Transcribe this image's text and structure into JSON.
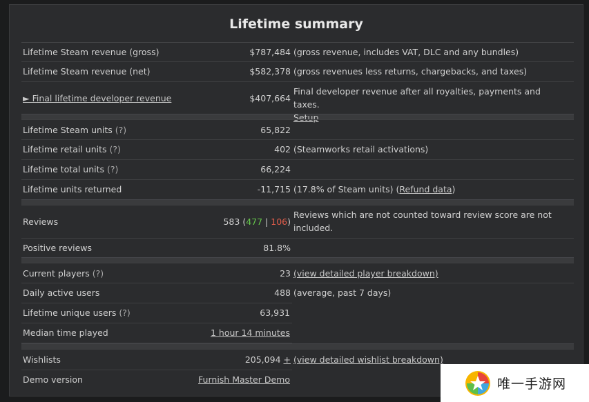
{
  "title": "Lifetime summary",
  "revenue": {
    "gross": {
      "label": "Lifetime Steam revenue (gross)",
      "value": "$787,484",
      "note": "(gross revenue, includes VAT, DLC and any bundles)"
    },
    "net": {
      "label": "Lifetime Steam revenue (net)",
      "value": "$582,378",
      "note": "(gross revenues less returns, chargebacks, and taxes)"
    },
    "developer": {
      "label": "► Final lifetime developer revenue",
      "value": "$407,664",
      "note": "Final developer revenue after all royalties, payments and taxes.",
      "setup": "Setup"
    }
  },
  "units": {
    "steam": {
      "label": "Lifetime Steam units",
      "q": "(?)",
      "value": "65,822"
    },
    "retail": {
      "label": "Lifetime retail units",
      "q": "(?)",
      "value": "402",
      "note": "(Steamworks retail activations)"
    },
    "total": {
      "label": "Lifetime total units",
      "q": "(?)",
      "value": "66,224"
    },
    "returned": {
      "label": "Lifetime units returned",
      "value": "-11,715",
      "note_prefix": "(17.8% of Steam units) (",
      "note_link": "Refund data",
      "note_suffix": ")"
    }
  },
  "reviews": {
    "label": "Reviews",
    "total": "583",
    "positive": "477",
    "negative": "106",
    "open": "(",
    "bar": "|",
    "close": ")",
    "note": "Reviews which are not counted toward review score are not included.",
    "positive_label": "Positive reviews",
    "positive_pct": "81.8%"
  },
  "players": {
    "current": {
      "label": "Current players",
      "q": "(?)",
      "value": "23",
      "link": "(view detailed player breakdown)"
    },
    "daily": {
      "label": "Daily active users",
      "value": "488",
      "note": "(average, past 7 days)"
    },
    "unique": {
      "label": "Lifetime unique users",
      "q": "(?)",
      "value": "63,931"
    },
    "median": {
      "label": "Median time played",
      "value": "1 hour 14 minutes"
    }
  },
  "wishlists": {
    "label": "Wishlists",
    "value": "205,094",
    "plus": "+",
    "link": "(view detailed wishlist breakdown)"
  },
  "demo": {
    "label": "Demo version",
    "value": "Furnish Master Demo"
  },
  "watermark": {
    "text": "唯一手游网"
  },
  "colors": {
    "positive": "#66c94b",
    "negative": "#e35d4b",
    "panel": "#2b2c2e",
    "separator": "#3a3b3d"
  }
}
